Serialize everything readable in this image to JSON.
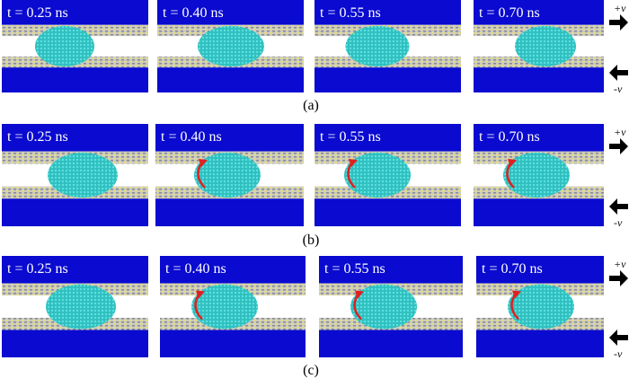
{
  "rows": [
    {
      "label": "(a)",
      "panels": [
        "t = 0.25 ns",
        "t = 0.40 ns",
        "t = 0.55 ns",
        "t = 0.70 ns"
      ],
      "plus": "+v",
      "minus": "-v"
    },
    {
      "label": "(b)",
      "panels": [
        "t = 0.25 ns",
        "t = 0.40 ns",
        "t = 0.55 ns",
        "t = 0.70 ns"
      ],
      "plus": "+v",
      "minus": "-v"
    },
    {
      "label": "(c)",
      "panels": [
        "t = 0.25 ns",
        "t = 0.40 ns",
        "t = 0.55 ns",
        "t = 0.70 ns"
      ],
      "plus": "+v",
      "minus": "-v"
    }
  ]
}
